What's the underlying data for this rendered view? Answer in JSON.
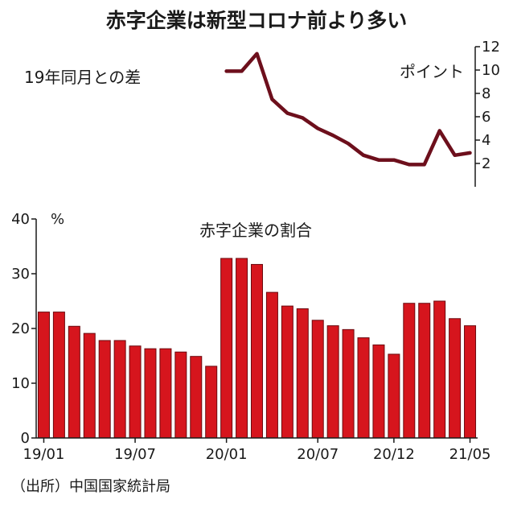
{
  "title": "赤字企業は新型コロナ前より多い",
  "source": "（出所）中国国家統計局",
  "colors": {
    "line": "#6d0f1c",
    "bar": "#d6151d",
    "bar_edge": "#6b0a0f",
    "axis": "#1a1a1a"
  },
  "chart_data": [
    {
      "type": "line",
      "title": "19年同月との差",
      "ylabel": "ポイント",
      "ylim": [
        0,
        12
      ],
      "yticks": [
        2,
        4,
        6,
        8,
        10,
        12
      ],
      "axis_side": "right",
      "x": [
        "20/01",
        "20/02",
        "20/03",
        "20/04",
        "20/05",
        "20/06",
        "20/07",
        "20/08",
        "20/09",
        "20/10",
        "20/11",
        "20/12",
        "21/01",
        "21/02",
        "21/03",
        "21/04",
        "21/05"
      ],
      "values": [
        9.9,
        9.9,
        11.4,
        7.5,
        6.3,
        5.9,
        5.0,
        4.4,
        3.7,
        2.7,
        2.3,
        2.3,
        1.9,
        1.9,
        4.8,
        2.7,
        2.9
      ]
    },
    {
      "type": "bar",
      "title": "赤字企業の割合",
      "ylabel": "%",
      "ylim": [
        0,
        40
      ],
      "yticks": [
        0,
        10,
        20,
        30,
        40
      ],
      "xticks": [
        "19/01",
        "19/07",
        "20/01",
        "20/07",
        "20/12",
        "21/05"
      ],
      "categories": [
        "19/01",
        "19/02",
        "19/03",
        "19/04",
        "19/05",
        "19/06",
        "19/07",
        "19/08",
        "19/09",
        "19/10",
        "19/11",
        "19/12",
        "20/01",
        "20/02",
        "20/03",
        "20/04",
        "20/05",
        "20/06",
        "20/07",
        "20/08",
        "20/09",
        "20/10",
        "20/11",
        "20/12",
        "21/01",
        "21/02",
        "21/03",
        "21/04",
        "21/05"
      ],
      "values": [
        23.0,
        23.0,
        20.4,
        19.1,
        17.8,
        17.8,
        16.8,
        16.3,
        16.3,
        15.7,
        14.9,
        13.1,
        32.8,
        32.8,
        31.7,
        26.6,
        24.1,
        23.6,
        21.5,
        20.5,
        19.8,
        18.3,
        17.0,
        15.3,
        24.6,
        24.6,
        25.0,
        21.8,
        20.5
      ]
    }
  ]
}
